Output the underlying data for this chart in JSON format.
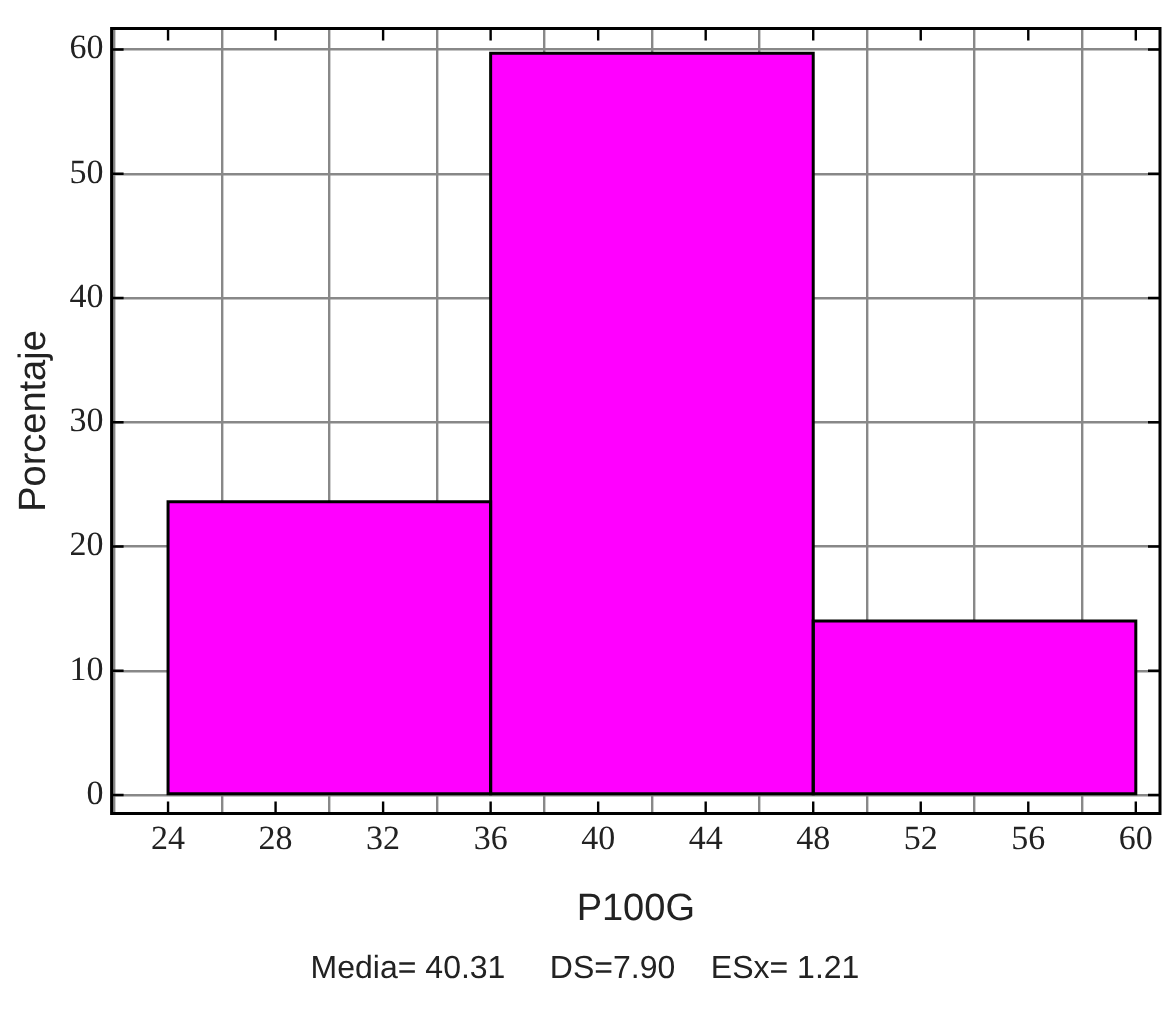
{
  "chart_data": {
    "type": "histogram",
    "xlabel": "P100G",
    "ylabel": "Porcentaje",
    "bins": [
      24,
      36,
      48,
      60
    ],
    "values": [
      23.6,
      59.7,
      14.0
    ],
    "color": "#ff00ff",
    "xlim": [
      21.9,
      60.9
    ],
    "xticks": [
      24,
      28,
      32,
      36,
      40,
      44,
      48,
      52,
      56,
      60
    ],
    "ylim": [
      -1.5,
      61.7
    ],
    "yticks": [
      0,
      10,
      20,
      30,
      40,
      50,
      60
    ],
    "grid": true,
    "annotations": [
      "Media= 40.31     DS=7.90    ESx= 1.21"
    ]
  }
}
